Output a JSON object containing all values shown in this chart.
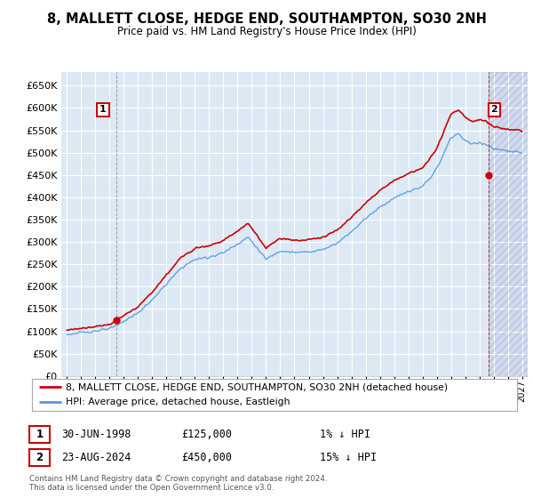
{
  "title": "8, MALLETT CLOSE, HEDGE END, SOUTHAMPTON, SO30 2NH",
  "subtitle": "Price paid vs. HM Land Registry's House Price Index (HPI)",
  "legend_line1": "8, MALLETT CLOSE, HEDGE END, SOUTHAMPTON, SO30 2NH (detached house)",
  "legend_line2": "HPI: Average price, detached house, Eastleigh",
  "annotation1_date": "30-JUN-1998",
  "annotation1_price": "£125,000",
  "annotation1_hpi": "1% ↓ HPI",
  "annotation2_date": "23-AUG-2024",
  "annotation2_price": "£450,000",
  "annotation2_hpi": "15% ↓ HPI",
  "footer": "Contains HM Land Registry data © Crown copyright and database right 2024.\nThis data is licensed under the Open Government Licence v3.0.",
  "ylim": [
    0,
    680000
  ],
  "yticks": [
    0,
    50000,
    100000,
    150000,
    200000,
    250000,
    300000,
    350000,
    400000,
    450000,
    500000,
    550000,
    600000,
    650000
  ],
  "background_color": "#ffffff",
  "plot_bg_color": "#dce9f5",
  "grid_color": "#ffffff",
  "hpi_line_color": "#5599dd",
  "price_line_color": "#cc0000",
  "sale1_x": 1998.49,
  "sale1_y": 125000,
  "sale2_x": 2024.65,
  "sale2_y": 450000,
  "xmin": 1995.0,
  "xmax": 2027.0
}
